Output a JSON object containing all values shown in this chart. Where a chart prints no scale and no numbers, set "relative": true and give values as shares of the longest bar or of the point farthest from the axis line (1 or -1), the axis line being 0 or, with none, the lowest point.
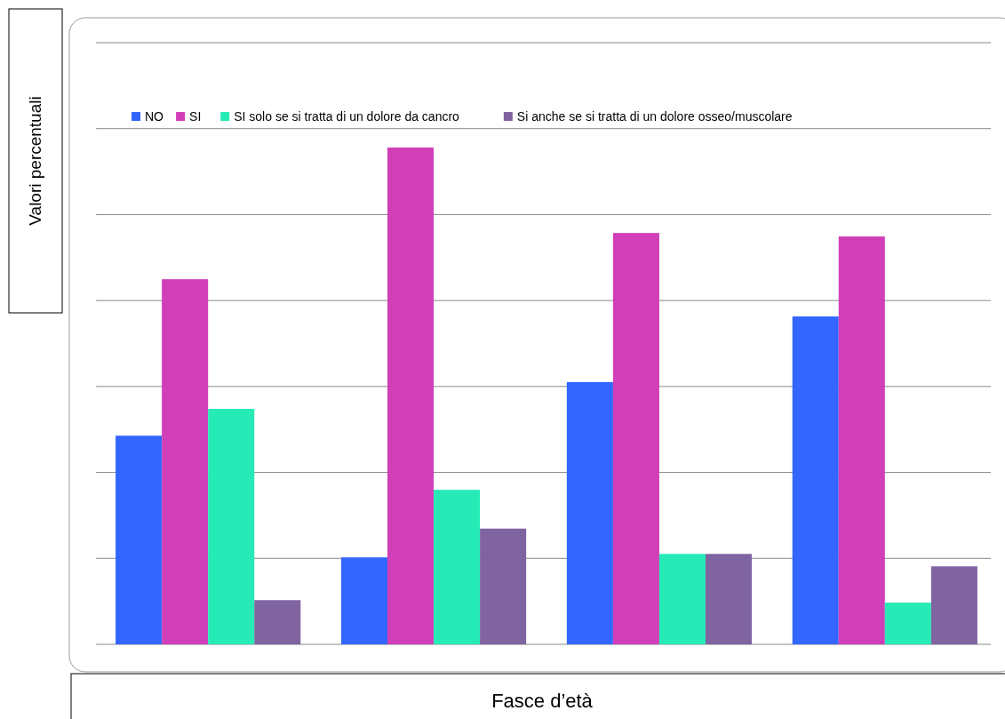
{
  "chart_data": {
    "type": "bar",
    "xlabel": "Fasce d’età",
    "ylabel": "Valori percentuali",
    "relative": true,
    "grid": true,
    "legend": "top",
    "categories": [
      null,
      null,
      null,
      null
    ],
    "series": [
      {
        "name": "NO",
        "color": "#3366ff",
        "values": [
          0.42,
          0.175,
          0.528,
          0.66
        ]
      },
      {
        "name": "SI",
        "color": "#d13fb8",
        "values": [
          0.735,
          1,
          0.828,
          0.821
        ]
      },
      {
        "name": "SI solo se si tratta di un dolore da cancro",
        "color": "#26ebb6",
        "values": [
          0.474,
          0.311,
          0.182,
          0.084
        ]
      },
      {
        "name": "Si anche se si tratta di un dolore osseo/muscolare",
        "color": "#8064a2",
        "values": [
          0.089,
          0.233,
          0.182,
          0.157
        ]
      }
    ]
  }
}
